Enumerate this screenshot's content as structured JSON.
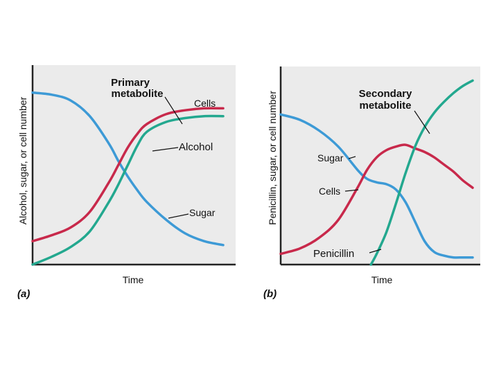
{
  "colors": {
    "plot_background": "#ebebeb",
    "sugar": "#3d9ad6",
    "alcohol": "#c8294b",
    "cells": "#23a88f",
    "penicillin": "#23a88f",
    "axis": "#222222"
  },
  "chart_data": [
    {
      "type": "line",
      "panel_label": "(a)",
      "xlabel": "Time",
      "ylabel": "Alcohol, sugar, or cell number",
      "x_ticks": [],
      "y_ticks": [],
      "xlim": [
        0,
        100
      ],
      "ylim": [
        0,
        100
      ],
      "grid": false,
      "annotations": {
        "primary_metabolite": "Primary\nmetabolite",
        "cells": "Cells",
        "alcohol": "Alcohol",
        "sugar": "Sugar"
      },
      "series": [
        {
          "name": "Sugar",
          "color": "#3d9ad6",
          "x": [
            0,
            10,
            20,
            30,
            40,
            45,
            50,
            55,
            60,
            70,
            80,
            90,
            100
          ],
          "y": [
            88,
            87,
            84,
            76,
            62,
            53,
            45,
            38,
            32,
            23,
            16,
            12,
            10
          ]
        },
        {
          "name": "Alcohol",
          "color": "#c8294b",
          "x": [
            0,
            10,
            20,
            30,
            40,
            45,
            50,
            55,
            60,
            70,
            80,
            90,
            100
          ],
          "y": [
            12,
            15,
            19,
            27,
            42,
            51,
            60,
            67,
            72,
            77,
            79,
            80,
            80
          ]
        },
        {
          "name": "Cells",
          "color": "#23a88f",
          "x": [
            0,
            10,
            20,
            30,
            40,
            45,
            50,
            55,
            60,
            70,
            80,
            90,
            100
          ],
          "y": [
            0,
            4,
            9,
            17,
            32,
            41,
            51,
            61,
            68,
            73,
            75,
            76,
            76
          ]
        }
      ]
    },
    {
      "type": "line",
      "panel_label": "(b)",
      "xlabel": "Time",
      "ylabel": "Penicillin, sugar, or cell number",
      "x_ticks": [],
      "y_ticks": [],
      "xlim": [
        0,
        100
      ],
      "ylim": [
        0,
        100
      ],
      "grid": false,
      "annotations": {
        "secondary_metabolite": "Secondary\nmetabolite",
        "sugar": "Sugar",
        "cells": "Cells",
        "penicillin": "Penicillin"
      },
      "series": [
        {
          "name": "Sugar",
          "color": "#3d9ad6",
          "x": [
            0,
            10,
            20,
            30,
            40,
            45,
            50,
            55,
            60,
            65,
            70,
            75,
            80,
            85,
            90,
            95,
            100
          ],
          "y": [
            84,
            81,
            75,
            66,
            53,
            48,
            46,
            45,
            42,
            35,
            24,
            13,
            7,
            5,
            4,
            4,
            4
          ]
        },
        {
          "name": "Cells",
          "color": "#c8294b",
          "x": [
            0,
            10,
            20,
            30,
            40,
            45,
            50,
            55,
            60,
            65,
            70,
            75,
            80,
            85,
            90,
            95,
            100
          ],
          "y": [
            6,
            9,
            15,
            25,
            43,
            53,
            60,
            64,
            66,
            67,
            65,
            63,
            60,
            56,
            52,
            47,
            43
          ]
        },
        {
          "name": "Penicillin",
          "color": "#23a88f",
          "x": [
            47,
            50,
            55,
            60,
            65,
            70,
            75,
            80,
            85,
            90,
            95,
            100
          ],
          "y": [
            0,
            6,
            18,
            34,
            51,
            66,
            77,
            85,
            91,
            96,
            100,
            103
          ]
        }
      ]
    }
  ]
}
